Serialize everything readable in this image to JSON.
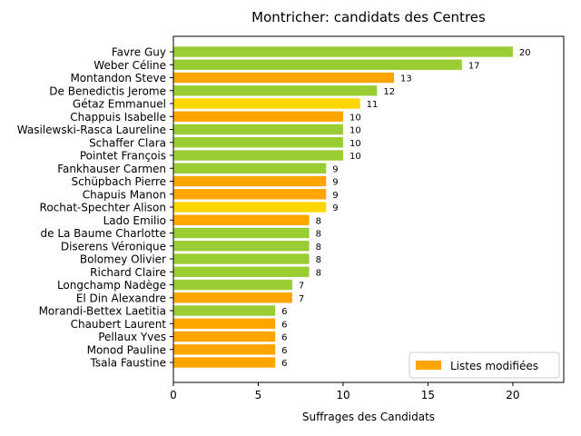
{
  "chart_data": {
    "type": "bar",
    "orientation": "horizontal",
    "title": "Montricher: candidats des Centres",
    "xlabel": "Suffrages des Candidats",
    "ylabel": "",
    "xlim": [
      0,
      23
    ],
    "xticks": [
      0,
      5,
      10,
      15,
      20
    ],
    "grid": false,
    "legend": {
      "placement": "lower-right",
      "entries": [
        {
          "label": "Listes modifiées",
          "color": "#FFA500"
        }
      ]
    },
    "colors": {
      "green": "#9ACD32",
      "orange": "#FFA500",
      "gold": "#FFD700"
    },
    "bars": [
      {
        "name": "Favre Guy",
        "value": 20,
        "color": "green"
      },
      {
        "name": "Weber Céline",
        "value": 17,
        "color": "green"
      },
      {
        "name": "Montandon Steve",
        "value": 13,
        "color": "orange"
      },
      {
        "name": "De Benedictis Jerome",
        "value": 12,
        "color": "green"
      },
      {
        "name": "Gétaz Emmanuel",
        "value": 11,
        "color": "gold"
      },
      {
        "name": "Chappuis Isabelle",
        "value": 10,
        "color": "orange"
      },
      {
        "name": "Wasilewski-Rasca Laureline",
        "value": 10,
        "color": "green"
      },
      {
        "name": "Schaffer Clara",
        "value": 10,
        "color": "green"
      },
      {
        "name": "Pointet François",
        "value": 10,
        "color": "green"
      },
      {
        "name": "Fankhauser Carmen",
        "value": 9,
        "color": "green"
      },
      {
        "name": "Schüpbach Pierre",
        "value": 9,
        "color": "orange"
      },
      {
        "name": "Chapuis Manon",
        "value": 9,
        "color": "orange"
      },
      {
        "name": "Rochat-Spechter Alison",
        "value": 9,
        "color": "gold"
      },
      {
        "name": "Lado Emilio",
        "value": 8,
        "color": "orange"
      },
      {
        "name": "de La Baume Charlotte",
        "value": 8,
        "color": "green"
      },
      {
        "name": "Diserens Véronique",
        "value": 8,
        "color": "green"
      },
      {
        "name": "Bolomey Olivier",
        "value": 8,
        "color": "green"
      },
      {
        "name": "Richard Claire",
        "value": 8,
        "color": "green"
      },
      {
        "name": "Longchamp Nadège",
        "value": 7,
        "color": "green"
      },
      {
        "name": "El Din Alexandre",
        "value": 7,
        "color": "orange"
      },
      {
        "name": "Morandi-Bettex Laetitia",
        "value": 6,
        "color": "green"
      },
      {
        "name": "Chaubert Laurent",
        "value": 6,
        "color": "orange"
      },
      {
        "name": "Pellaux Yves",
        "value": 6,
        "color": "orange"
      },
      {
        "name": "Monod Pauline",
        "value": 6,
        "color": "orange"
      },
      {
        "name": "Tsala Faustine",
        "value": 6,
        "color": "orange"
      }
    ]
  }
}
